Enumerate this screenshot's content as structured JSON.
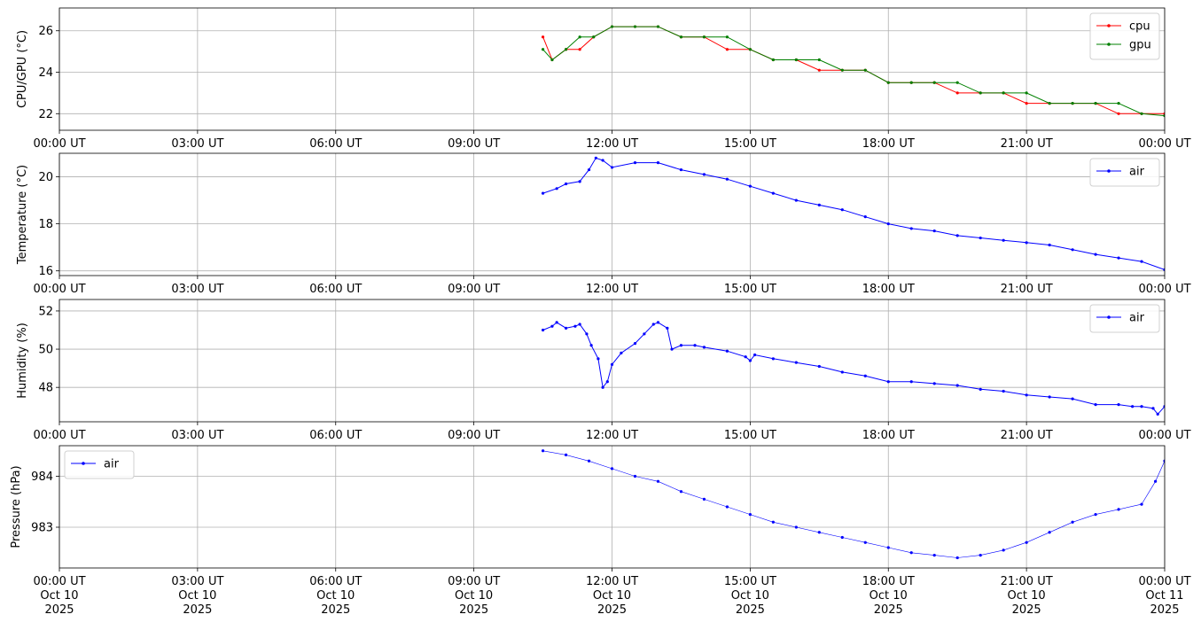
{
  "chart_data": [
    {
      "type": "line",
      "ylabel": "CPU/GPU (°C)",
      "ylim": [
        21.2,
        27.1
      ],
      "yticks": [
        22,
        24,
        26
      ],
      "legend": "top-right",
      "series": [
        {
          "name": "cpu",
          "color": "#ff0000",
          "x": [
            10.5,
            10.7,
            11.0,
            11.3,
            11.6,
            12.0,
            12.5,
            13.0,
            13.5,
            14.0,
            14.5,
            15.0,
            15.5,
            16.0,
            16.5,
            17.0,
            17.5,
            18.0,
            18.5,
            19.0,
            19.5,
            20.0,
            20.5,
            21.0,
            21.5,
            22.0,
            22.5,
            23.0,
            23.5,
            24.0
          ],
          "y": [
            25.7,
            24.6,
            25.1,
            25.1,
            25.7,
            26.2,
            26.2,
            26.2,
            25.7,
            25.7,
            25.1,
            25.1,
            24.6,
            24.6,
            24.1,
            24.1,
            24.1,
            23.5,
            23.5,
            23.5,
            23.0,
            23.0,
            23.0,
            22.5,
            22.5,
            22.5,
            22.5,
            22.0,
            22.0,
            22.0
          ]
        },
        {
          "name": "gpu",
          "color": "#008000",
          "x": [
            10.5,
            10.7,
            11.0,
            11.3,
            11.6,
            12.0,
            12.5,
            13.0,
            13.5,
            14.0,
            14.5,
            15.0,
            15.5,
            16.0,
            16.5,
            17.0,
            17.5,
            18.0,
            18.5,
            19.0,
            19.5,
            20.0,
            20.5,
            21.0,
            21.5,
            22.0,
            22.5,
            23.0,
            23.5,
            24.0
          ],
          "y": [
            25.1,
            24.6,
            25.1,
            25.7,
            25.7,
            26.2,
            26.2,
            26.2,
            25.7,
            25.7,
            25.7,
            25.1,
            24.6,
            24.6,
            24.6,
            24.1,
            24.1,
            23.5,
            23.5,
            23.5,
            23.5,
            23.0,
            23.0,
            23.0,
            22.5,
            22.5,
            22.5,
            22.5,
            22.0,
            21.9
          ]
        }
      ]
    },
    {
      "type": "line",
      "ylabel": "Temperature (°C)",
      "ylim": [
        15.8,
        21.0
      ],
      "yticks": [
        16,
        18,
        20
      ],
      "legend": "top-right",
      "series": [
        {
          "name": "air",
          "color": "#0000ff",
          "x": [
            10.5,
            10.8,
            11.0,
            11.3,
            11.5,
            11.65,
            11.8,
            12.0,
            12.5,
            13.0,
            13.5,
            14.0,
            14.5,
            15.0,
            15.5,
            16.0,
            16.5,
            17.0,
            17.5,
            18.0,
            18.5,
            19.0,
            19.5,
            20.0,
            20.5,
            21.0,
            21.5,
            22.0,
            22.5,
            23.0,
            23.5,
            24.0
          ],
          "y": [
            19.3,
            19.5,
            19.7,
            19.8,
            20.3,
            20.8,
            20.7,
            20.4,
            20.6,
            20.6,
            20.3,
            20.1,
            19.9,
            19.6,
            19.3,
            19.0,
            18.8,
            18.6,
            18.3,
            18.0,
            17.8,
            17.7,
            17.5,
            17.4,
            17.3,
            17.2,
            17.1,
            16.9,
            16.7,
            16.55,
            16.4,
            16.05
          ]
        }
      ]
    },
    {
      "type": "line",
      "ylabel": "Humidity (%)",
      "ylim": [
        46.2,
        52.6
      ],
      "yticks": [
        48,
        50,
        52
      ],
      "legend": "top-right",
      "series": [
        {
          "name": "air",
          "color": "#0000ff",
          "x": [
            10.5,
            10.7,
            10.8,
            11.0,
            11.2,
            11.3,
            11.45,
            11.55,
            11.7,
            11.8,
            11.9,
            12.0,
            12.2,
            12.5,
            12.7,
            12.9,
            13.0,
            13.2,
            13.3,
            13.5,
            13.8,
            14.0,
            14.5,
            14.9,
            15.0,
            15.1,
            15.5,
            16.0,
            16.5,
            17.0,
            17.5,
            18.0,
            18.5,
            19.0,
            19.5,
            20.0,
            20.5,
            21.0,
            21.5,
            22.0,
            22.5,
            23.0,
            23.3,
            23.5,
            23.75,
            23.85,
            24.0
          ],
          "y": [
            51.0,
            51.2,
            51.4,
            51.1,
            51.2,
            51.3,
            50.8,
            50.2,
            49.5,
            48.0,
            48.3,
            49.2,
            49.8,
            50.3,
            50.8,
            51.3,
            51.4,
            51.1,
            50.0,
            50.2,
            50.2,
            50.1,
            49.9,
            49.6,
            49.4,
            49.7,
            49.5,
            49.3,
            49.1,
            48.8,
            48.6,
            48.3,
            48.3,
            48.2,
            48.1,
            47.9,
            47.8,
            47.6,
            47.5,
            47.4,
            47.1,
            47.1,
            47.0,
            47.0,
            46.9,
            46.6,
            47.0
          ]
        }
      ]
    },
    {
      "type": "scatter",
      "ylabel": "Pressure (hPa)",
      "ylim": [
        982.2,
        984.6
      ],
      "yticks": [
        983,
        984
      ],
      "legend": "top-left",
      "series": [
        {
          "name": "air",
          "color": "#0000ff",
          "x": [
            10.5,
            11.0,
            11.5,
            12.0,
            12.5,
            13.0,
            13.5,
            14.0,
            14.5,
            15.0,
            15.5,
            16.0,
            16.5,
            17.0,
            17.5,
            18.0,
            18.5,
            19.0,
            19.5,
            20.0,
            20.5,
            21.0,
            21.5,
            22.0,
            22.5,
            23.0,
            23.5,
            23.8,
            24.0
          ],
          "y": [
            984.5,
            984.42,
            984.3,
            984.15,
            984.0,
            983.9,
            983.7,
            983.55,
            983.4,
            983.25,
            983.1,
            983.0,
            982.9,
            982.8,
            982.7,
            982.6,
            982.5,
            982.45,
            982.4,
            982.45,
            982.55,
            982.7,
            982.9,
            983.1,
            983.25,
            983.35,
            983.45,
            983.9,
            984.3
          ]
        }
      ]
    }
  ],
  "xaxis": {
    "range_hours": [
      0,
      24
    ],
    "tick_hours": [
      0,
      3,
      6,
      9,
      12,
      15,
      18,
      21,
      24
    ],
    "tick_labels": [
      "00:00 UT",
      "03:00 UT",
      "06:00 UT",
      "09:00 UT",
      "12:00 UT",
      "15:00 UT",
      "18:00 UT",
      "21:00 UT",
      "00:00 UT"
    ],
    "date_labels": [
      "Oct 10",
      "Oct 10",
      "Oct 10",
      "Oct 10",
      "Oct 10",
      "Oct 10",
      "Oct 10",
      "Oct 10",
      "Oct 11"
    ],
    "year_labels": [
      "2025",
      "2025",
      "2025",
      "2025",
      "2025",
      "2025",
      "2025",
      "2025",
      "2025"
    ]
  },
  "grid": true
}
